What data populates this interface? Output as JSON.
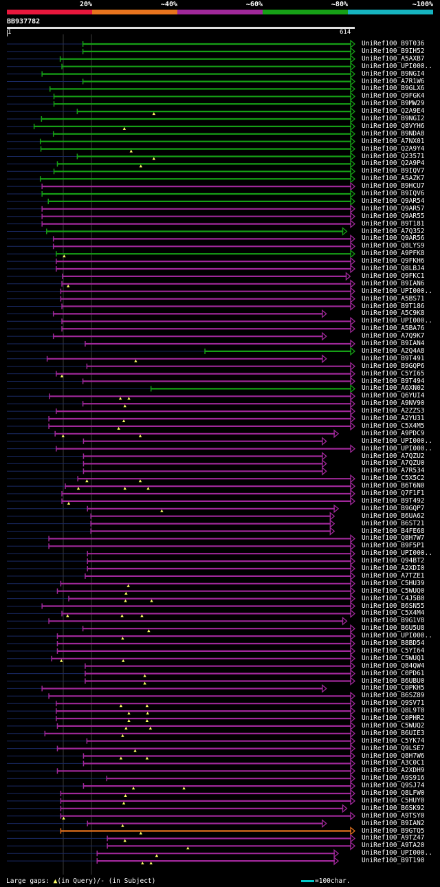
{
  "legend": {
    "labels": [
      "20%",
      "~40%",
      "~60%",
      "~80%",
      "~100%"
    ],
    "colors": [
      "#e8173c",
      "#e8741e",
      "#a0289a",
      "#16a016",
      "#16b4c0"
    ]
  },
  "query": {
    "id": "BB937782",
    "start": "1",
    "end": "614",
    "length": 614
  },
  "footer": {
    "text_a": "Large gaps: ",
    "glyph": "▲",
    "text_b": "(in Query)/- (in Subject)"
  },
  "scale_key": {
    "text": "=100char."
  },
  "hits": [
    {
      "label": "UniRef100_B9T036",
      "color": "#16a016",
      "start": 135,
      "end": 614,
      "tail": "arrow",
      "gaps": []
    },
    {
      "label": "UniRef100_B9IH52",
      "color": "#16a016",
      "start": 135,
      "end": 614,
      "tail": "arrow",
      "gaps": []
    },
    {
      "label": "UniRef100_A5AXB7",
      "color": "#16a016",
      "start": 95,
      "end": 614,
      "tail": "arrow",
      "gaps": []
    },
    {
      "label": "UniRef100_UPI000..",
      "color": "#16a016",
      "start": 98,
      "end": 614,
      "tail": "arrow",
      "gaps": []
    },
    {
      "label": "UniRef100_B9NGI4",
      "color": "#16a016",
      "start": 63,
      "end": 614,
      "tail": "arrow",
      "gaps": []
    },
    {
      "label": "UniRef100_A7R1W6",
      "color": "#16a016",
      "start": 135,
      "end": 614,
      "tail": "arrow",
      "gaps": []
    },
    {
      "label": "UniRef100_B9GLX6",
      "color": "#16a016",
      "start": 77,
      "end": 614,
      "tail": "arrow",
      "gaps": []
    },
    {
      "label": "UniRef100_Q9FGK4",
      "color": "#16a016",
      "start": 84,
      "end": 614,
      "tail": "arrow",
      "gaps": []
    },
    {
      "label": "UniRef100_B9MW29",
      "color": "#16a016",
      "start": 84,
      "end": 614,
      "tail": "arrow",
      "gaps": []
    },
    {
      "label": "UniRef100_Q2A9E4",
      "color": "#16a016",
      "start": 125,
      "end": 614,
      "tail": "arrow",
      "gaps": [
        260
      ]
    },
    {
      "label": "UniRef100_B9NGI2",
      "color": "#16a016",
      "start": 62,
      "end": 614,
      "tail": "arrow",
      "gaps": []
    },
    {
      "label": "UniRef100_Q8VYH6",
      "color": "#16a016",
      "start": 49,
      "end": 614,
      "tail": "arrow",
      "gaps": [
        208
      ]
    },
    {
      "label": "UniRef100_B9NDA8",
      "color": "#16a016",
      "start": 83,
      "end": 614,
      "tail": "arrow",
      "gaps": []
    },
    {
      "label": "UniRef100_A7NX01",
      "color": "#16a016",
      "start": 60,
      "end": 614,
      "tail": "arrow",
      "gaps": []
    },
    {
      "label": "UniRef100_Q2A9Y4",
      "color": "#16a016",
      "start": 61,
      "end": 614,
      "tail": "arrow",
      "gaps": [
        220
      ]
    },
    {
      "label": "UniRef100_Q23571",
      "color": "#16a016",
      "start": 125,
      "end": 614,
      "tail": "arrow",
      "gaps": [
        260
      ]
    },
    {
      "label": "UniRef100_Q2A9P4",
      "color": "#16a016",
      "start": 90,
      "end": 614,
      "tail": "arrow",
      "gaps": [
        237
      ]
    },
    {
      "label": "UniRef100_B9IQV7",
      "color": "#16a016",
      "start": 84,
      "end": 614,
      "tail": "arrow",
      "gaps": []
    },
    {
      "label": "UniRef100_A5AZK7",
      "color": "#16a016",
      "start": 60,
      "end": 614,
      "tail": "arrow",
      "gaps": []
    },
    {
      "label": "UniRef100_B9HCU7",
      "color": "#a0289a",
      "start": 63,
      "end": 614,
      "tail": "arrow",
      "gaps": []
    },
    {
      "label": "UniRef100_B9IQV6",
      "color": "#16a016",
      "start": 63,
      "end": 614,
      "tail": "arrow",
      "gaps": []
    },
    {
      "label": "UniRef100_Q9AR54",
      "color": "#16a016",
      "start": 74,
      "end": 614,
      "tail": "arrow",
      "gaps": []
    },
    {
      "label": "UniRef100_Q9AR57",
      "color": "#a0289a",
      "start": 63,
      "end": 614,
      "tail": "arrow",
      "gaps": []
    },
    {
      "label": "UniRef100_Q9AR55",
      "color": "#a0289a",
      "start": 63,
      "end": 614,
      "tail": "arrow",
      "gaps": []
    },
    {
      "label": "UniRef100_B9T181",
      "color": "#a0289a",
      "start": 63,
      "end": 614,
      "tail": "arrow",
      "gaps": []
    },
    {
      "label": "UniRef100_A7Q352",
      "color": "#16a016",
      "start": 71,
      "end": 600,
      "tail": "arrow",
      "gaps": []
    },
    {
      "label": "UniRef100_Q9AR56",
      "color": "#a0289a",
      "start": 83,
      "end": 614,
      "tail": "arrow",
      "gaps": []
    },
    {
      "label": "UniRef100_Q8LYS9",
      "color": "#a0289a",
      "start": 83,
      "end": 614,
      "tail": "arrow",
      "gaps": []
    },
    {
      "label": "UniRef100_A9PFK8",
      "color": "#16a016",
      "start": 88,
      "end": 614,
      "tail": "arrow",
      "gaps": [
        102
      ]
    },
    {
      "label": "UniRef100_Q9FKH6",
      "color": "#a0289a",
      "start": 88,
      "end": 614,
      "tail": "arrow",
      "gaps": []
    },
    {
      "label": "UniRef100_Q8LBJ4",
      "color": "#a0289a",
      "start": 88,
      "end": 614,
      "tail": "arrow",
      "gaps": []
    },
    {
      "label": "UniRef100_Q9FKC1",
      "color": "#a0289a",
      "start": 99,
      "end": 606,
      "tail": "arrow",
      "gaps": []
    },
    {
      "label": "UniRef100_B9IAN6",
      "color": "#a0289a",
      "start": 98,
      "end": 614,
      "tail": "arrow",
      "gaps": [
        109
      ]
    },
    {
      "label": "UniRef100_UPI000..",
      "color": "#a0289a",
      "start": 96,
      "end": 614,
      "tail": "arrow",
      "gaps": []
    },
    {
      "label": "UniRef100_A5BS71",
      "color": "#a0289a",
      "start": 96,
      "end": 614,
      "tail": "arrow",
      "gaps": []
    },
    {
      "label": "UniRef100_B9T186",
      "color": "#a0289a",
      "start": 98,
      "end": 614,
      "tail": "arrow",
      "gaps": []
    },
    {
      "label": "UniRef100_A5C9K8",
      "color": "#a0289a",
      "start": 83,
      "end": 564,
      "tail": "arrow",
      "gaps": []
    },
    {
      "label": "UniRef100_UPI000..",
      "color": "#a0289a",
      "start": 98,
      "end": 614,
      "tail": "arrow",
      "gaps": []
    },
    {
      "label": "UniRef100_A5BA76",
      "color": "#a0289a",
      "start": 98,
      "end": 614,
      "tail": "arrow",
      "gaps": []
    },
    {
      "label": "UniRef100_A7Q9K7",
      "color": "#a0289a",
      "start": 83,
      "end": 564,
      "tail": "arrow",
      "gaps": []
    },
    {
      "label": "UniRef100_B9IAN4",
      "color": "#a0289a",
      "start": 139,
      "end": 614,
      "tail": "arrow",
      "gaps": []
    },
    {
      "label": "UniRef100_A2Q4A8",
      "color": "#16a016",
      "start": 350,
      "end": 614,
      "tail": "arrow",
      "gaps": []
    },
    {
      "label": "UniRef100_B9T491",
      "color": "#a0289a",
      "start": 72,
      "end": 564,
      "tail": "arrow",
      "gaps": [
        228
      ]
    },
    {
      "label": "UniRef100_B9GQP6",
      "color": "#a0289a",
      "start": 142,
      "end": 614,
      "tail": "arrow",
      "gaps": []
    },
    {
      "label": "UniRef100_C5YI65",
      "color": "#a0289a",
      "start": 88,
      "end": 614,
      "tail": "arrow",
      "gaps": [
        98
      ]
    },
    {
      "label": "UniRef100_B9T494",
      "color": "#a0289a",
      "start": 135,
      "end": 614,
      "tail": "arrow",
      "gaps": []
    },
    {
      "label": "UniRef100_A6XN02",
      "color": "#16a016",
      "start": 255,
      "end": 614,
      "tail": "arrow",
      "gaps": []
    },
    {
      "label": "UniRef100_Q6YUI4",
      "color": "#a0289a",
      "start": 76,
      "end": 614,
      "tail": "arrow",
      "gaps": [
        201,
        216
      ]
    },
    {
      "label": "UniRef100_A9NV90",
      "color": "#a0289a",
      "start": 135,
      "end": 614,
      "tail": "arrow",
      "gaps": [
        209
      ]
    },
    {
      "label": "UniRef100_A2ZZS3",
      "color": "#a0289a",
      "start": 88,
      "end": 614,
      "tail": "arrow",
      "gaps": []
    },
    {
      "label": "UniRef100_A2YU31",
      "color": "#a0289a",
      "start": 75,
      "end": 614,
      "tail": "arrow",
      "gaps": [
        207
      ]
    },
    {
      "label": "UniRef100_C5X4M5",
      "color": "#a0289a",
      "start": 75,
      "end": 614,
      "tail": "arrow",
      "gaps": [
        198
      ]
    },
    {
      "label": "UniRef100_A9PDC9",
      "color": "#a0289a",
      "start": 86,
      "end": 585,
      "tail": "arrow",
      "gaps": [
        100,
        236
      ]
    },
    {
      "label": "UniRef100_UPI000..",
      "color": "#a0289a",
      "start": 136,
      "end": 564,
      "tail": "arrow",
      "gaps": []
    },
    {
      "label": "UniRef100_UPI000..",
      "color": "#a0289a",
      "start": 88,
      "end": 614,
      "tail": "arrow",
      "gaps": []
    },
    {
      "label": "UniRef100_A7QZU2",
      "color": "#a0289a",
      "start": 136,
      "end": 564,
      "tail": "arrow",
      "gaps": []
    },
    {
      "label": "UniRef100_A7QZU0",
      "color": "#a0289a",
      "start": 136,
      "end": 564,
      "tail": "arrow",
      "gaps": []
    },
    {
      "label": "UniRef100_A7R534",
      "color": "#a0289a",
      "start": 136,
      "end": 564,
      "tail": "arrow",
      "gaps": []
    },
    {
      "label": "UniRef100_C5X5C2",
      "color": "#a0289a",
      "start": 126,
      "end": 614,
      "tail": "arrow",
      "gaps": [
        142,
        236
      ]
    },
    {
      "label": "UniRef100_B6T6N0",
      "color": "#a0289a",
      "start": 104,
      "end": 614,
      "tail": "arrow",
      "gaps": [
        127,
        209,
        250
      ]
    },
    {
      "label": "UniRef100_Q7F1F1",
      "color": "#a0289a",
      "start": 98,
      "end": 614,
      "tail": "arrow",
      "gaps": []
    },
    {
      "label": "UniRef100_B9T492",
      "color": "#a0289a",
      "start": 98,
      "end": 614,
      "tail": "arrow",
      "gaps": [
        110
      ]
    },
    {
      "label": "UniRef100_B9GQP7",
      "color": "#a0289a",
      "start": 143,
      "end": 585,
      "tail": "arrow",
      "gaps": [
        274
      ]
    },
    {
      "label": "UniRef100_B6UA62",
      "color": "#a0289a",
      "start": 149,
      "end": 578,
      "tail": "arrow",
      "gaps": []
    },
    {
      "label": "UniRef100_B6ST21",
      "color": "#a0289a",
      "start": 149,
      "end": 578,
      "tail": "arrow",
      "gaps": []
    },
    {
      "label": "UniRef100_B4FE68",
      "color": "#a0289a",
      "start": 149,
      "end": 578,
      "tail": "arrow",
      "gaps": []
    },
    {
      "label": "UniRef100_Q8H7W7",
      "color": "#a0289a",
      "start": 75,
      "end": 614,
      "tail": "arrow",
      "gaps": []
    },
    {
      "label": "UniRef100_B9F5P1",
      "color": "#a0289a",
      "start": 75,
      "end": 614,
      "tail": "arrow",
      "gaps": []
    },
    {
      "label": "UniRef100_UPI000..",
      "color": "#a0289a",
      "start": 143,
      "end": 614,
      "tail": "arrow",
      "gaps": []
    },
    {
      "label": "UniRef100_Q94BT2",
      "color": "#a0289a",
      "start": 143,
      "end": 614,
      "tail": "arrow",
      "gaps": []
    },
    {
      "label": "UniRef100_A2XDI0",
      "color": "#a0289a",
      "start": 143,
      "end": 614,
      "tail": "arrow",
      "gaps": []
    },
    {
      "label": "UniRef100_A7TZE1",
      "color": "#a0289a",
      "start": 139,
      "end": 614,
      "tail": "arrow",
      "gaps": []
    },
    {
      "label": "UniRef100_C5HU39",
      "color": "#a0289a",
      "start": 96,
      "end": 614,
      "tail": "arrow",
      "gaps": [
        215
      ]
    },
    {
      "label": "UniRef100_C5WUQ0",
      "color": "#a0289a",
      "start": 90,
      "end": 614,
      "tail": "arrow",
      "gaps": [
        211
      ]
    },
    {
      "label": "UniRef100_C4J5B0",
      "color": "#a0289a",
      "start": 110,
      "end": 614,
      "tail": "arrow",
      "gaps": [
        210,
        256
      ]
    },
    {
      "label": "UniRef100_B6SN55",
      "color": "#a0289a",
      "start": 63,
      "end": 614,
      "tail": "arrow",
      "gaps": []
    },
    {
      "label": "UniRef100_C5X4M4",
      "color": "#a0289a",
      "start": 98,
      "end": 614,
      "tail": "arrow",
      "gaps": [
        108,
        204,
        239
      ]
    },
    {
      "label": "UniRef100_B9G1V8",
      "color": "#a0289a",
      "start": 75,
      "end": 600,
      "tail": "arrow",
      "gaps": []
    },
    {
      "label": "UniRef100_B6U5U8",
      "color": "#a0289a",
      "start": 135,
      "end": 614,
      "tail": "arrow",
      "gaps": [
        251
      ]
    },
    {
      "label": "UniRef100_UPI000..",
      "color": "#a0289a",
      "start": 90,
      "end": 614,
      "tail": "arrow",
      "gaps": [
        205
      ]
    },
    {
      "label": "UniRef100_B8BD54",
      "color": "#a0289a",
      "start": 90,
      "end": 614,
      "tail": "arrow",
      "gaps": []
    },
    {
      "label": "UniRef100_C5YI64",
      "color": "#a0289a",
      "start": 90,
      "end": 614,
      "tail": "arrow",
      "gaps": []
    },
    {
      "label": "UniRef100_C5WUQ1",
      "color": "#a0289a",
      "start": 80,
      "end": 614,
      "tail": "arrow",
      "gaps": [
        97,
        206
      ]
    },
    {
      "label": "UniRef100_Q84QW4",
      "color": "#a0289a",
      "start": 139,
      "end": 614,
      "tail": "arrow",
      "gaps": []
    },
    {
      "label": "UniRef100_C0PD61",
      "color": "#a0289a",
      "start": 139,
      "end": 614,
      "tail": "arrow",
      "gaps": [
        244
      ]
    },
    {
      "label": "UniRef100_B6UBU0",
      "color": "#a0289a",
      "start": 139,
      "end": 614,
      "tail": "arrow",
      "gaps": [
        244
      ]
    },
    {
      "label": "UniRef100_C0PKH5",
      "color": "#a0289a",
      "start": 63,
      "end": 564,
      "tail": "arrow",
      "gaps": []
    },
    {
      "label": "UniRef100_B6SZ89",
      "color": "#a0289a",
      "start": 75,
      "end": 614,
      "tail": "arrow",
      "gaps": []
    },
    {
      "label": "UniRef100_Q9SV71",
      "color": "#a0289a",
      "start": 88,
      "end": 614,
      "tail": "arrow",
      "gaps": [
        202,
        248
      ]
    },
    {
      "label": "UniRef100_Q8L9T0",
      "color": "#a0289a",
      "start": 88,
      "end": 614,
      "tail": "arrow",
      "gaps": [
        216,
        249
      ]
    },
    {
      "label": "UniRef100_C0PHR2",
      "color": "#a0289a",
      "start": 88,
      "end": 614,
      "tail": "arrow",
      "gaps": [
        216,
        248
      ]
    },
    {
      "label": "UniRef100_C5WUQ2",
      "color": "#a0289a",
      "start": 90,
      "end": 614,
      "tail": "arrow",
      "gaps": [
        211,
        254
      ]
    },
    {
      "label": "UniRef100_B6UIE3",
      "color": "#a0289a",
      "start": 68,
      "end": 614,
      "tail": "arrow",
      "gaps": [
        205
      ]
    },
    {
      "label": "UniRef100_C5YK74",
      "color": "#a0289a",
      "start": 142,
      "end": 614,
      "tail": "arrow",
      "gaps": []
    },
    {
      "label": "UniRef100_Q9LSE7",
      "color": "#a0289a",
      "start": 90,
      "end": 614,
      "tail": "arrow",
      "gaps": [
        227
      ]
    },
    {
      "label": "UniRef100_Q8H7W6",
      "color": "#a0289a",
      "start": 136,
      "end": 614,
      "tail": "arrow",
      "gaps": [
        202,
        248
      ]
    },
    {
      "label": "UniRef100_A3C0C1",
      "color": "#a0289a",
      "start": 136,
      "end": 614,
      "tail": "arrow",
      "gaps": []
    },
    {
      "label": "UniRef100_A2XDH9",
      "color": "#a0289a",
      "start": 90,
      "end": 614,
      "tail": "arrow",
      "gaps": []
    },
    {
      "label": "UniRef100_A9S916",
      "color": "#a0289a",
      "start": 177,
      "end": 614,
      "tail": "arrow",
      "gaps": []
    },
    {
      "label": "UniRef100_Q9SJ74",
      "color": "#a0289a",
      "start": 136,
      "end": 614,
      "tail": "arrow",
      "gaps": [
        224,
        313
      ]
    },
    {
      "label": "UniRef100_Q8LFW0",
      "color": "#a0289a",
      "start": 96,
      "end": 614,
      "tail": "arrow",
      "gaps": [
        210
      ]
    },
    {
      "label": "UniRef100_C5HUY0",
      "color": "#a0289a",
      "start": 96,
      "end": 614,
      "tail": "arrow",
      "gaps": [
        207
      ]
    },
    {
      "label": "UniRef100_B6SK92",
      "color": "#a0289a",
      "start": 96,
      "end": 600,
      "tail": "arrow",
      "gaps": []
    },
    {
      "label": "UniRef100_A9TSY0",
      "color": "#a0289a",
      "start": 96,
      "end": 614,
      "tail": "arrow",
      "gaps": [
        101
      ]
    },
    {
      "label": "UniRef100_B9IAN2",
      "color": "#a0289a",
      "start": 143,
      "end": 564,
      "tail": "arrow",
      "gaps": [
        205
      ]
    },
    {
      "label": "UniRef100_B9GTQ5",
      "color": "#e8741e",
      "start": 96,
      "end": 614,
      "tail": "arrow",
      "gaps": [
        237
      ]
    },
    {
      "label": "UniRef100_A9TZ47",
      "color": "#a0289a",
      "start": 178,
      "end": 614,
      "tail": "arrow",
      "gaps": [
        209
      ]
    },
    {
      "label": "UniRef100_A9TA20",
      "color": "#a0289a",
      "start": 178,
      "end": 614,
      "tail": "arrow",
      "gaps": [
        320
      ]
    },
    {
      "label": "UniRef100_UPI000..",
      "color": "#a0289a",
      "start": 160,
      "end": 585,
      "tail": "arrow",
      "gaps": [
        265
      ]
    },
    {
      "label": "UniRef100_B9T190",
      "color": "#a0289a",
      "start": 160,
      "end": 585,
      "tail": "arrow",
      "gaps": [
        240,
        255
      ]
    }
  ]
}
